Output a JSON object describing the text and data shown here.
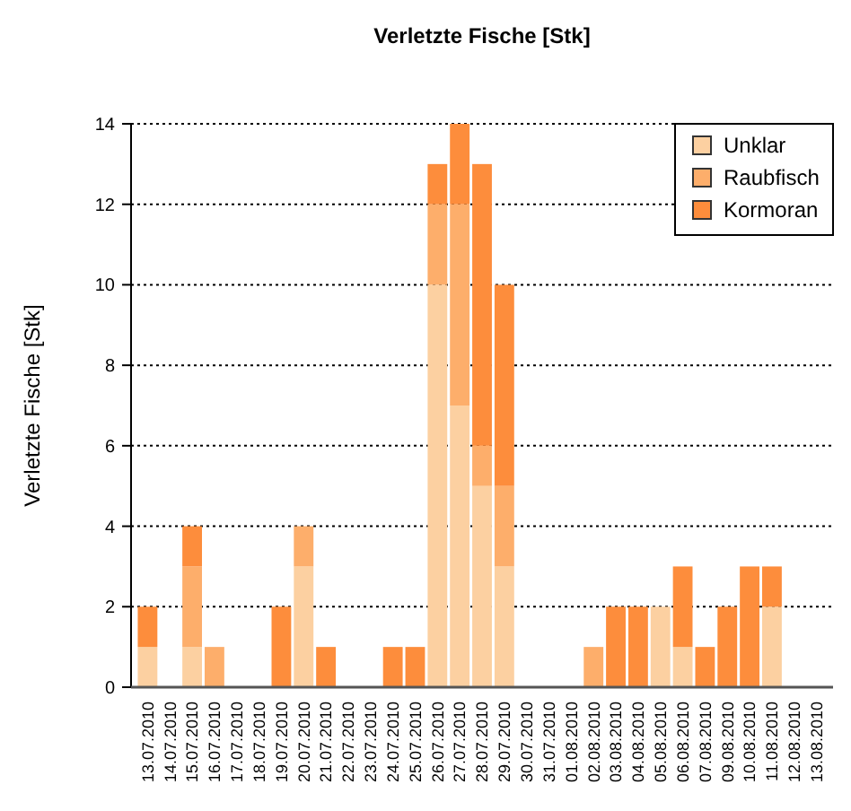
{
  "chart_data": {
    "type": "bar",
    "title": "Verletzte Fische [Stk]",
    "ylabel": "Verletzte Fische [Stk]",
    "categories": [
      "13.07.2010",
      "14.07.2010",
      "15.07.2010",
      "16.07.2010",
      "17.07.2010",
      "18.07.2010",
      "19.07.2010",
      "20.07.2010",
      "21.07.2010",
      "22.07.2010",
      "23.07.2010",
      "24.07.2010",
      "25.07.2010",
      "26.07.2010",
      "27.07.2010",
      "28.07.2010",
      "29.07.2010",
      "30.07.2010",
      "31.07.2010",
      "01.08.2010",
      "02.08.2010",
      "03.08.2010",
      "04.08.2010",
      "05.08.2010",
      "06.08.2010",
      "07.08.2010",
      "09.08.2010",
      "10.08.2010",
      "11.08.2010",
      "12.08.2010",
      "13.08.2010"
    ],
    "series": [
      {
        "name": "Unklar",
        "color": "#fcd0a1",
        "values": [
          1,
          0,
          1,
          0,
          0,
          0,
          0,
          3,
          0,
          0,
          0,
          0,
          0,
          10,
          7,
          5,
          3,
          0,
          0,
          0,
          0,
          0,
          0,
          2,
          1,
          0,
          0,
          0,
          2,
          0,
          0
        ]
      },
      {
        "name": "Raubfisch",
        "color": "#fdae6b",
        "values": [
          0,
          0,
          2,
          1,
          0,
          0,
          0,
          1,
          0,
          0,
          0,
          0,
          0,
          2,
          5,
          1,
          2,
          0,
          0,
          0,
          1,
          0,
          0,
          0,
          0,
          0,
          0,
          0,
          0,
          0,
          0
        ]
      },
      {
        "name": "Kormoran",
        "color": "#fd8d3c",
        "values": [
          1,
          0,
          1,
          0,
          0,
          0,
          2,
          0,
          1,
          0,
          0,
          1,
          1,
          1,
          2,
          7,
          5,
          0,
          0,
          0,
          0,
          2,
          2,
          0,
          2,
          1,
          2,
          3,
          1,
          0,
          0
        ]
      }
    ],
    "stacked": true,
    "ylim": [
      0,
      14
    ],
    "yticks": [
      0,
      2,
      4,
      6,
      8,
      10,
      12,
      14
    ],
    "grid": "y",
    "legend": "top right"
  }
}
